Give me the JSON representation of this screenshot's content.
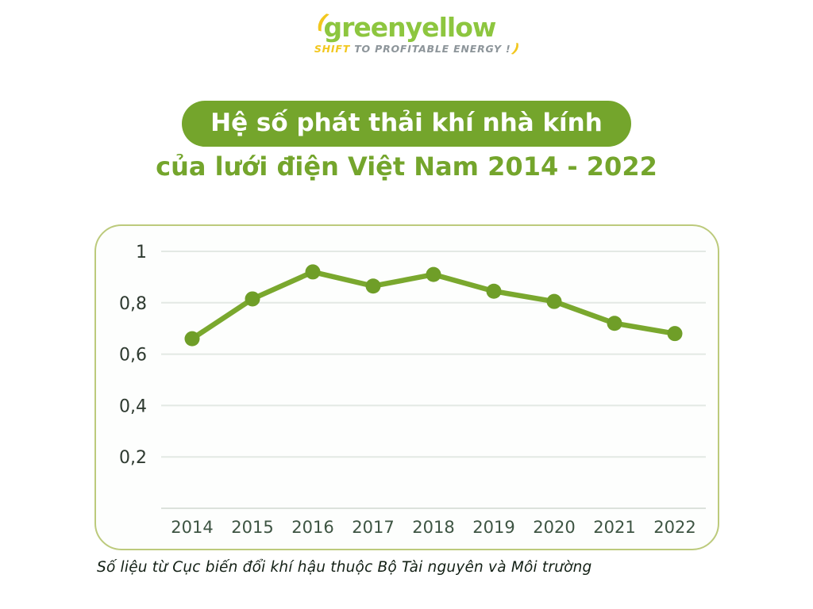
{
  "logo": {
    "brand": "greenyellow",
    "swoosh_left": "(",
    "swoosh_right": ")",
    "tagline_highlight": "SHIFT",
    "tagline_rest": "TO PROFITABLE ENERGY !",
    "brand_color": "#8dc63f",
    "accent_color": "#f2c71e",
    "tagline_color": "#8d959a"
  },
  "title": {
    "line1": "Hệ số phát thải khí nhà kính",
    "line2": "của lưới điện Việt Nam 2014 - 2022",
    "pill_color": "#74a52c",
    "text_color": "#ffffff"
  },
  "chart_data": {
    "type": "line",
    "title": "Hệ số phát thải khí nhà kính của lưới điện Việt Nam 2014 - 2022",
    "categories": [
      "2014",
      "2015",
      "2016",
      "2017",
      "2018",
      "2019",
      "2020",
      "2021",
      "2022"
    ],
    "series": [
      {
        "name": "Hệ số phát thải",
        "values": [
          0.66,
          0.815,
          0.92,
          0.865,
          0.91,
          0.845,
          0.805,
          0.72,
          0.68
        ]
      }
    ],
    "xlabel": "",
    "ylabel": "",
    "ylim": [
      0,
      1.05
    ],
    "grid": true,
    "legend_position": "none",
    "y_ticks": [
      {
        "value": 1.0,
        "label": "1"
      },
      {
        "value": 0.8,
        "label": "0,8"
      },
      {
        "value": 0.6,
        "label": "0,6"
      },
      {
        "value": 0.4,
        "label": "0,4"
      },
      {
        "value": 0.2,
        "label": "0,2"
      }
    ],
    "line_color": "#7aa82e",
    "marker_color": "#6f9e28",
    "grid_color": "#e3e9e4",
    "axis_line_color": "#dce2dc",
    "y_label_color": "#2e3a30",
    "x_label_color": "#3d5442"
  },
  "footer": {
    "source_note": "Số liệu từ Cục biến đổi khí hậu thuộc Bộ Tài nguyên và Môi trường"
  }
}
